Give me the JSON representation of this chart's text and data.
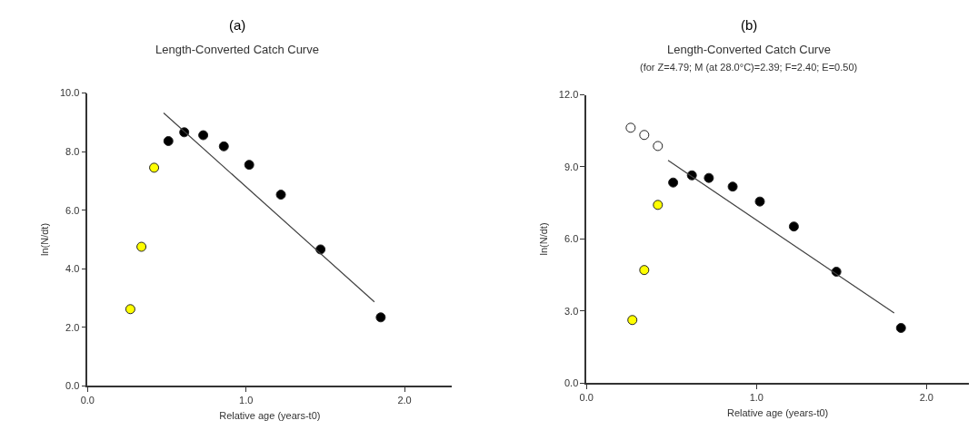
{
  "chart_data": [
    {
      "type": "scatter",
      "annotations": [
        "(a)"
      ],
      "title": "Length-Converted Catch Curve",
      "xlabel": "Relative age (years-t0)",
      "ylabel": "ln(N/dt)",
      "xlim": [
        0,
        2.3
      ],
      "xticks": [
        {
          "value": 0,
          "label": "0.0"
        },
        {
          "value": 1,
          "label": "1.0"
        },
        {
          "value": 2,
          "label": "2.0"
        }
      ],
      "ylim": [
        0,
        10
      ],
      "yticks": [
        {
          "value": 0,
          "label": "0.0"
        },
        {
          "value": 2,
          "label": "2.0"
        },
        {
          "value": 4,
          "label": "4.0"
        },
        {
          "value": 6,
          "label": "6.0"
        },
        {
          "value": 8,
          "label": "8.0"
        },
        {
          "value": 10,
          "label": "10.0"
        }
      ],
      "marker": "circle",
      "series": [
        {
          "color": "#ffff00",
          "x": [
            0.27,
            0.34,
            0.42
          ],
          "values": [
            2.62,
            4.75,
            7.45
          ]
        },
        {
          "color": "#000000",
          "x": [
            0.51,
            0.61,
            0.73,
            0.86,
            1.02,
            1.22,
            1.47,
            1.85
          ],
          "values": [
            8.36,
            8.66,
            8.56,
            8.18,
            7.55,
            6.53,
            4.66,
            2.34
          ]
        },
        {
          "type": "line",
          "marker": "none",
          "color": "#404040",
          "line_style": "solid",
          "x": [
            0.48,
            1.81
          ],
          "values": [
            9.32,
            2.87
          ]
        }
      ]
    },
    {
      "type": "scatter",
      "annotations": [
        "(b)"
      ],
      "title": "Length-Converted Catch Curve",
      "subtitle": "(for Z=4.79; M (at 28.0°C)=2.39; F=2.40; E=0.50)",
      "xlabel": "Relative age (years-t0)",
      "ylabel": "ln(N/dt)",
      "xlim": [
        0,
        2.25
      ],
      "xticks": [
        {
          "value": 0,
          "label": "0.0"
        },
        {
          "value": 1,
          "label": "1.0"
        },
        {
          "value": 2,
          "label": "2.0"
        }
      ],
      "ylim": [
        0,
        12
      ],
      "yticks": [
        {
          "value": 0,
          "label": "0.0"
        },
        {
          "value": 3,
          "label": "3.0"
        },
        {
          "value": 6,
          "label": "6.0"
        },
        {
          "value": 9,
          "label": "9.0"
        },
        {
          "value": 12,
          "label": "12.0"
        }
      ],
      "marker": "circle",
      "series": [
        {
          "color": "#ffffff",
          "x": [
            0.26,
            0.34,
            0.42
          ],
          "values": [
            10.63,
            10.33,
            9.87
          ]
        },
        {
          "color": "#ffff00",
          "x": [
            0.27,
            0.34,
            0.42
          ],
          "values": [
            2.63,
            4.71,
            7.42
          ]
        },
        {
          "color": "#000000",
          "x": [
            0.51,
            0.62,
            0.72,
            0.86,
            1.02,
            1.22,
            1.47,
            1.85
          ],
          "values": [
            8.35,
            8.65,
            8.54,
            8.18,
            7.56,
            6.52,
            4.64,
            2.3
          ]
        },
        {
          "type": "line",
          "marker": "none",
          "color": "#404040",
          "line_style": "solid",
          "x": [
            0.48,
            1.81
          ],
          "values": [
            9.27,
            2.92
          ]
        }
      ]
    }
  ]
}
